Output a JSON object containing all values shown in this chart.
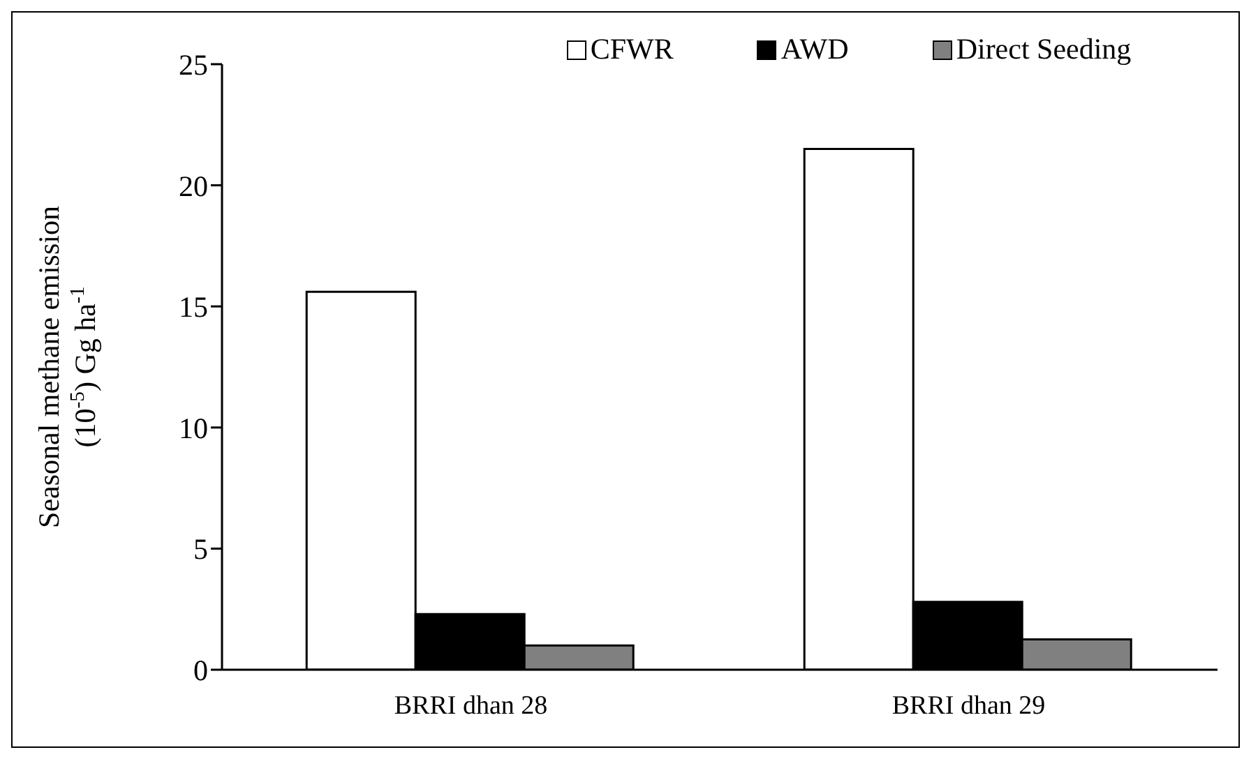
{
  "chart_data": {
    "type": "bar",
    "ylabel": "Seasonal methane emission\n(10$^{-5}$) Gg ha$^{-1}$",
    "categories": [
      "BRRI dhan 28",
      "BRRI dhan 29"
    ],
    "series": [
      {
        "name": "CFWR",
        "color": "#ffffff",
        "values": [
          15.6,
          21.5
        ]
      },
      {
        "name": "AWD",
        "color": "#000000",
        "values": [
          2.3,
          2.8
        ]
      },
      {
        "name": "Direct Seeding",
        "color": "#808080",
        "values": [
          1.0,
          1.25
        ]
      }
    ],
    "ylim": [
      0,
      25
    ],
    "yticks": [
      0,
      5,
      10,
      15,
      20,
      25
    ],
    "grid": false,
    "legend": "top"
  }
}
